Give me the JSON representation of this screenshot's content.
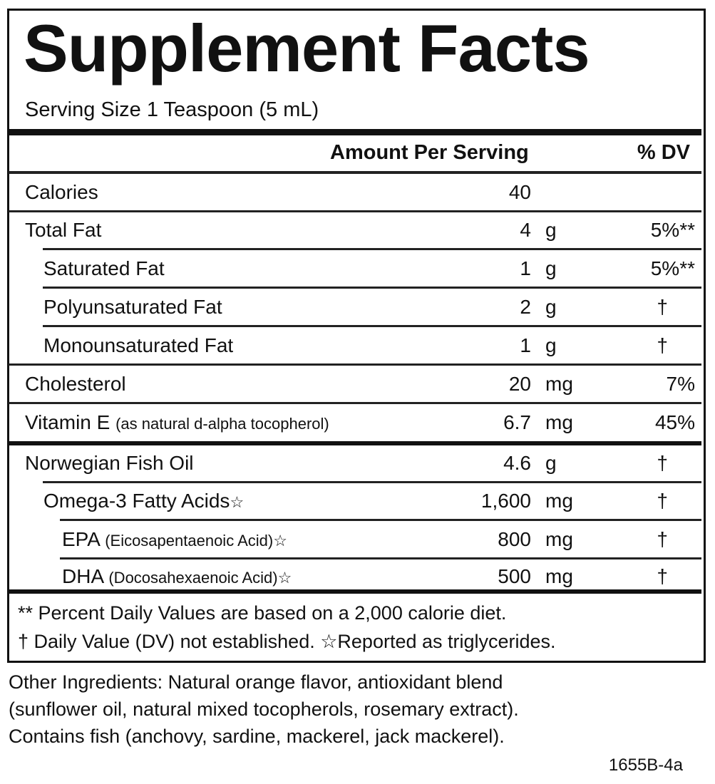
{
  "title": "Supplement Facts",
  "serving_size": "Serving Size 1 Teaspoon (5 mL)",
  "header": {
    "amount": "Amount Per Serving",
    "dv": "% DV"
  },
  "rows": [
    {
      "name": "Calories",
      "note": "",
      "amount": "40",
      "unit": "",
      "dv": ""
    },
    {
      "name": "Total Fat",
      "note": "",
      "amount": "4",
      "unit": "g",
      "dv": "5%**"
    },
    {
      "name": "Saturated Fat",
      "note": "",
      "amount": "1",
      "unit": "g",
      "dv": "5%**"
    },
    {
      "name": "Polyunsaturated Fat",
      "note": "",
      "amount": "2",
      "unit": "g",
      "dv": "†"
    },
    {
      "name": "Monounsaturated Fat",
      "note": "",
      "amount": "1",
      "unit": "g",
      "dv": "†"
    },
    {
      "name": "Cholesterol",
      "note": "",
      "amount": "20",
      "unit": "mg",
      "dv": "7%"
    },
    {
      "name": "Vitamin E ",
      "note": "(as natural d-alpha tocopherol)",
      "amount": "6.7",
      "unit": "mg",
      "dv": "45%"
    },
    {
      "name": "Norwegian Fish Oil",
      "note": "",
      "amount": "4.6",
      "unit": "g",
      "dv": "†"
    },
    {
      "name": "Omega-3 Fatty Acids",
      "note": "☆",
      "amount": "1,600",
      "unit": "mg",
      "dv": "†"
    },
    {
      "name": "EPA ",
      "note": "(Eicosapentaenoic Acid)☆",
      "amount": "800",
      "unit": "mg",
      "dv": "†"
    },
    {
      "name": "DHA ",
      "note": "(Docosahexaenoic Acid)☆",
      "amount": "500",
      "unit": "mg",
      "dv": "†"
    }
  ],
  "footnotes": [
    "** Percent Daily Values are based on a 2,000 calorie diet.",
    "† Daily Value (DV) not established.  ☆Reported as triglycerides."
  ],
  "other_ingredients": [
    "Other Ingredients: Natural orange flavor, antioxidant blend",
    "(sunflower oil, natural mixed tocopherols, rosemary extract).",
    "Contains fish (anchovy, sardine, mackerel, jack mackerel)."
  ],
  "code": "1655B-4a"
}
